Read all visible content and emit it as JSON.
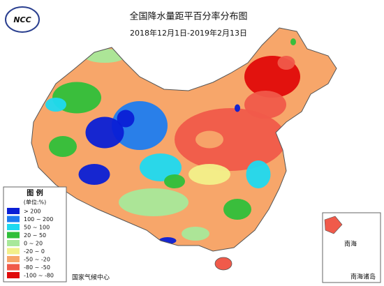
{
  "logo": "NCC",
  "title": "全国降水量距平百分率分布图",
  "subtitle": "2018年12月1日-2019年2月13日",
  "legend": {
    "title": "图 例",
    "unit": "(单位:%)",
    "items": [
      {
        "label": "> 200",
        "color": "#0a1fd6"
      },
      {
        "label": "100 ~ 200",
        "color": "#1e7cf0"
      },
      {
        "label": "50 ~ 100",
        "color": "#1fd9f0"
      },
      {
        "label": "20 ~ 50",
        "color": "#2fbf3a"
      },
      {
        "label": "0 ~ 20",
        "color": "#a8e89a"
      },
      {
        "label": "-20 ~ 0",
        "color": "#f2f08a"
      },
      {
        "label": "-50 ~ -20",
        "color": "#f7a66a"
      },
      {
        "label": "-80 ~ -50",
        "color": "#f05a4a"
      },
      {
        "label": "-100 ~ -80",
        "color": "#e00a0a"
      }
    ]
  },
  "source": "国家气候中心",
  "inset": {
    "title": "南海诸岛",
    "sea": "南海"
  }
}
